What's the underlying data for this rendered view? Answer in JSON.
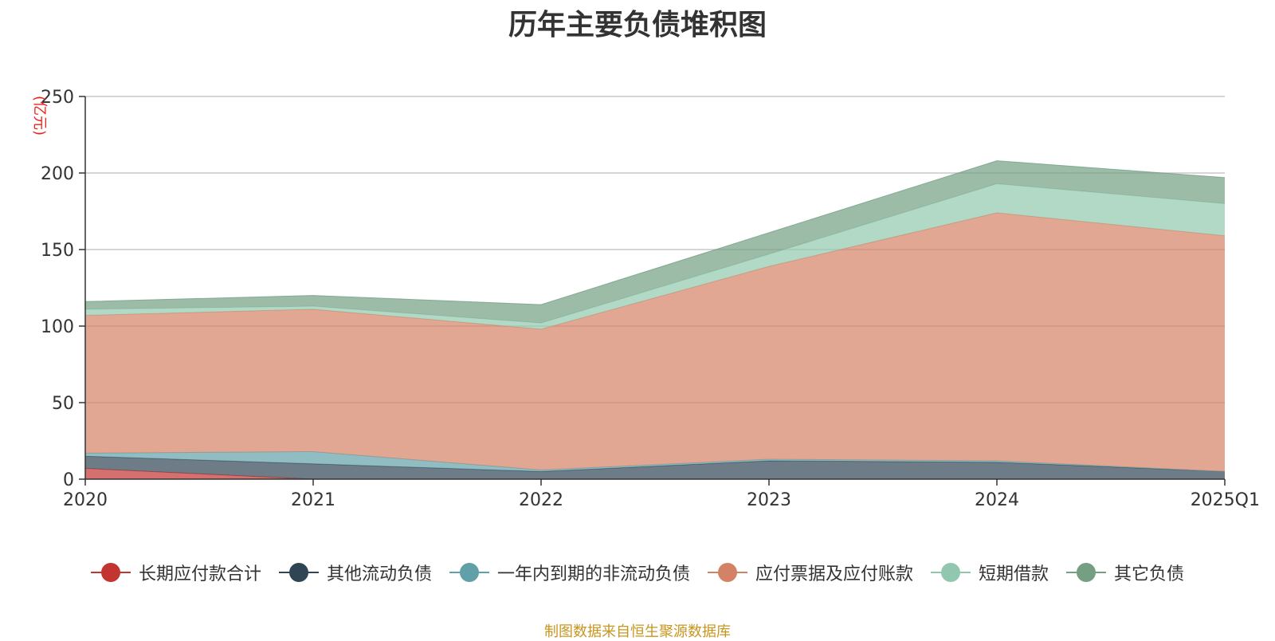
{
  "chart_data": {
    "type": "area",
    "stacked": true,
    "title": "历年主要负债堆积图",
    "y_unit": "(亿元)",
    "categories": [
      "2020",
      "2021",
      "2022",
      "2023",
      "2024",
      "2025Q1"
    ],
    "ylim": [
      0,
      250
    ],
    "yticks": [
      0,
      50,
      100,
      150,
      200,
      250
    ],
    "grid": true,
    "legend_position": "bottom",
    "series": [
      {
        "name": "长期应付款合计",
        "color": "#c23531",
        "values": [
          7,
          0,
          0,
          0,
          0,
          0
        ]
      },
      {
        "name": "其他流动负债",
        "color": "#2f4554",
        "values": [
          8,
          10,
          5,
          12,
          11,
          5
        ]
      },
      {
        "name": "一年内到期的非流动负债",
        "color": "#61a0a8",
        "values": [
          2,
          8,
          1,
          1,
          1,
          0
        ]
      },
      {
        "name": "应付票据及应付账款",
        "color": "#d48265",
        "values": [
          90,
          93,
          92,
          126,
          162,
          154
        ]
      },
      {
        "name": "短期借款",
        "color": "#91c7ae",
        "values": [
          4,
          2,
          4,
          8,
          19,
          21
        ]
      },
      {
        "name": "其它负债",
        "color": "#749f83",
        "values": [
          5,
          7,
          12,
          14,
          15,
          17
        ]
      }
    ],
    "source_note": "制图数据来自恒生聚源数据库"
  }
}
